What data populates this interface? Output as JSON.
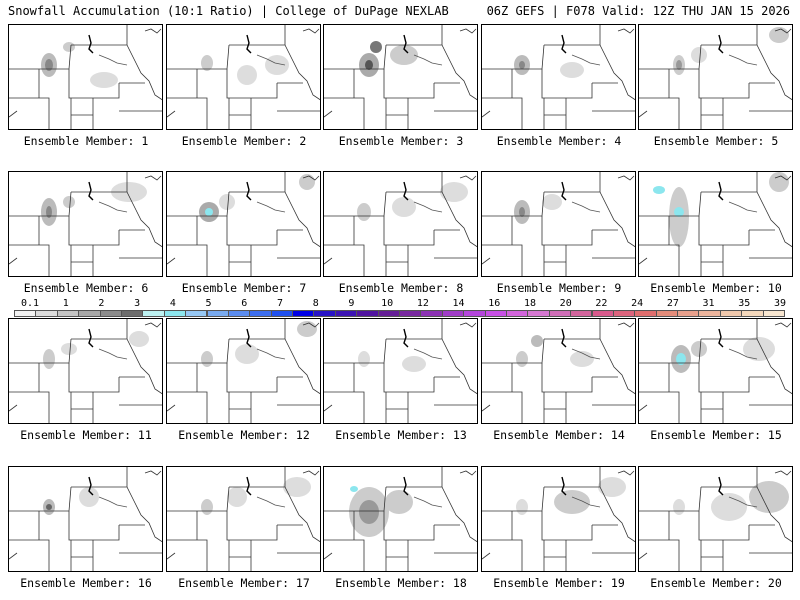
{
  "header": {
    "left": "Snowfall Accumulation (10:1 Ratio) | College of DuPage NEXLAB",
    "right": "06Z GEFS | F078 Valid: 12Z THU JAN 15 2026"
  },
  "legend": {
    "labels": [
      "0.1",
      "1",
      "2",
      "3",
      "4",
      "5",
      "6",
      "7",
      "8",
      "9",
      "10",
      "12",
      "14",
      "16",
      "18",
      "20",
      "22",
      "24",
      "27",
      "31",
      "35",
      "39"
    ],
    "colors": [
      "#f2f2f2",
      "#dcdcdc",
      "#c4c4c4",
      "#a8a8a8",
      "#8c8c8c",
      "#6e6e6e",
      "#bdf2f2",
      "#8ce6ee",
      "#96c8f5",
      "#78aaf0",
      "#5a8cf0",
      "#3c6ef0",
      "#1e50f0",
      "#0000e6",
      "#2814c8",
      "#3c14b4",
      "#5014a0",
      "#641e96",
      "#7828a0",
      "#8c32b4",
      "#a03cc8",
      "#b446dc",
      "#c850e6",
      "#d264dc",
      "#d678d2",
      "#d06eb8",
      "#d2649c",
      "#d85a8c",
      "#dc647d",
      "#e06e6e",
      "#e48c7a",
      "#e8a08c",
      "#ecb49c",
      "#f0c8ac",
      "#f4d8bc",
      "#f8e6d0"
    ]
  },
  "panels": [
    {
      "label": "Ensemble Member: 1"
    },
    {
      "label": "Ensemble Member: 2"
    },
    {
      "label": "Ensemble Member: 3"
    },
    {
      "label": "Ensemble Member: 4"
    },
    {
      "label": "Ensemble Member: 5"
    },
    {
      "label": "Ensemble Member: 6"
    },
    {
      "label": "Ensemble Member: 7"
    },
    {
      "label": "Ensemble Member: 8"
    },
    {
      "label": "Ensemble Member: 9"
    },
    {
      "label": "Ensemble Member: 10"
    },
    {
      "label": "Ensemble Member: 11"
    },
    {
      "label": "Ensemble Member: 12"
    },
    {
      "label": "Ensemble Member: 13"
    },
    {
      "label": "Ensemble Member: 14"
    },
    {
      "label": "Ensemble Member: 15"
    },
    {
      "label": "Ensemble Member: 16"
    },
    {
      "label": "Ensemble Member: 17"
    },
    {
      "label": "Ensemble Member: 18"
    },
    {
      "label": "Ensemble Member: 19"
    },
    {
      "label": "Ensemble Member: 20"
    }
  ]
}
